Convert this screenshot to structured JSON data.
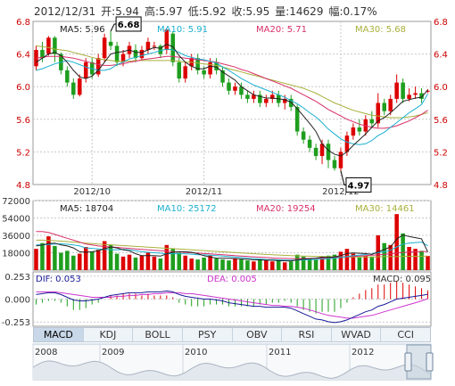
{
  "header": {
    "date": "2012/12/31",
    "open": "开:5.94",
    "high": "高:5.97",
    "low": "低:5.92",
    "close": "收:5.95",
    "volume": "量:14629",
    "change": "幅:0.17%"
  },
  "tabs": [
    {
      "label": "MACD",
      "active": true
    },
    {
      "label": "KDJ",
      "active": false
    },
    {
      "label": "BOLL",
      "active": false
    },
    {
      "label": "PSY",
      "active": false
    },
    {
      "label": "OBV",
      "active": false
    },
    {
      "label": "RSI",
      "active": false
    },
    {
      "label": "WVAD",
      "active": false
    },
    {
      "label": "CCI",
      "active": false
    }
  ],
  "colors": {
    "up": "#dd0000",
    "down": "#1e9e1e",
    "ma5": "#222222",
    "ma10": "#1ab0d0",
    "ma20": "#d8306a",
    "ma30": "#a8b03a",
    "dif": "#1a1a99",
    "dea": "#cc33cc",
    "grid": "#c8c8c8"
  },
  "chart_data": [
    {
      "type": "candlestick",
      "ylim": [
        4.8,
        6.8
      ],
      "y_ticks": [
        "6.8",
        "6.4",
        "6.0",
        "5.6",
        "5.2",
        "4.8"
      ],
      "x_ticks": [
        {
          "label": "2012/10",
          "index": 9
        },
        {
          "label": "2012/11",
          "index": 27
        },
        {
          "label": "2012/12",
          "index": 49
        }
      ],
      "legend": [
        {
          "label": "MA5: 5.96",
          "color": "#222222"
        },
        {
          "label": "MA10: 5.91",
          "color": "#1ab0d0"
        },
        {
          "label": "MA20: 5.71",
          "color": "#d8306a"
        },
        {
          "label": "MA30: 5.68",
          "color": "#a8b03a"
        }
      ],
      "annotations": [
        {
          "text": "6.68",
          "index": 12,
          "value": 6.68
        },
        {
          "text": "4.97",
          "index": 49,
          "value": 4.97
        }
      ],
      "candles": [
        [
          6.25,
          6.45,
          6.5,
          6.2
        ],
        [
          6.45,
          6.35,
          6.55,
          6.3
        ],
        [
          6.4,
          6.6,
          6.62,
          6.38
        ],
        [
          6.6,
          6.4,
          6.62,
          6.3
        ],
        [
          6.4,
          6.2,
          6.42,
          6.15
        ],
        [
          6.2,
          6.05,
          6.25,
          6.0
        ],
        [
          6.05,
          5.9,
          6.1,
          5.85
        ],
        [
          5.9,
          6.1,
          6.15,
          5.88
        ],
        [
          6.1,
          6.3,
          6.35,
          6.05
        ],
        [
          6.3,
          6.15,
          6.35,
          6.1
        ],
        [
          6.15,
          6.35,
          6.4,
          6.12
        ],
        [
          6.35,
          6.6,
          6.65,
          6.3
        ],
        [
          6.55,
          6.5,
          6.68,
          6.45
        ],
        [
          6.5,
          6.3,
          6.55,
          6.25
        ],
        [
          6.3,
          6.4,
          6.45,
          6.25
        ],
        [
          6.4,
          6.5,
          6.55,
          6.35
        ],
        [
          6.45,
          6.35,
          6.52,
          6.3
        ],
        [
          6.35,
          6.45,
          6.5,
          6.32
        ],
        [
          6.45,
          6.55,
          6.6,
          6.4
        ],
        [
          6.5,
          6.5,
          6.55,
          6.45
        ],
        [
          6.5,
          6.4,
          6.52,
          6.35
        ],
        [
          6.45,
          6.7,
          6.72,
          6.4
        ],
        [
          6.65,
          6.3,
          6.68,
          6.25
        ],
        [
          6.3,
          6.1,
          6.35,
          6.05
        ],
        [
          6.1,
          6.25,
          6.3,
          6.05
        ],
        [
          6.25,
          6.35,
          6.4,
          6.2
        ],
        [
          6.35,
          6.2,
          6.4,
          6.15
        ],
        [
          6.2,
          6.15,
          6.25,
          6.1
        ],
        [
          6.15,
          6.3,
          6.35,
          6.1
        ],
        [
          6.3,
          6.2,
          6.35,
          6.15
        ],
        [
          6.2,
          6.05,
          6.25,
          6.0
        ],
        [
          6.05,
          5.95,
          6.1,
          5.9
        ],
        [
          5.95,
          6.0,
          6.05,
          5.9
        ],
        [
          6.0,
          5.9,
          6.05,
          5.85
        ],
        [
          5.9,
          5.85,
          5.95,
          5.8
        ],
        [
          5.85,
          5.9,
          5.95,
          5.8
        ],
        [
          5.9,
          5.8,
          5.95,
          5.75
        ],
        [
          5.8,
          5.85,
          5.9,
          5.75
        ],
        [
          5.85,
          5.9,
          5.95,
          5.8
        ],
        [
          5.9,
          5.8,
          5.95,
          5.75
        ],
        [
          5.8,
          5.85,
          5.9,
          5.72
        ],
        [
          5.85,
          5.75,
          5.9,
          5.7
        ],
        [
          5.75,
          5.45,
          5.78,
          5.4
        ],
        [
          5.45,
          5.35,
          5.5,
          5.3
        ],
        [
          5.35,
          5.25,
          5.4,
          5.2
        ],
        [
          5.25,
          5.15,
          5.3,
          5.1
        ],
        [
          5.15,
          5.3,
          5.35,
          5.05
        ],
        [
          5.3,
          5.1,
          5.35,
          5.0
        ],
        [
          5.1,
          5.0,
          5.15,
          4.97
        ],
        [
          5.0,
          5.2,
          5.25,
          4.97
        ],
        [
          5.2,
          5.4,
          5.45,
          5.15
        ],
        [
          5.4,
          5.5,
          5.55,
          5.35
        ],
        [
          5.5,
          5.45,
          5.6,
          5.4
        ],
        [
          5.45,
          5.6,
          5.65,
          5.4
        ],
        [
          5.6,
          5.55,
          5.7,
          5.5
        ],
        [
          5.55,
          5.8,
          5.92,
          5.5
        ],
        [
          5.8,
          5.7,
          5.85,
          5.65
        ],
        [
          5.7,
          5.85,
          5.9,
          5.65
        ],
        [
          5.85,
          6.05,
          6.15,
          5.8
        ],
        [
          6.05,
          5.85,
          6.1,
          5.8
        ],
        [
          5.85,
          5.9,
          5.98,
          5.82
        ],
        [
          5.9,
          5.92,
          6.0,
          5.85
        ],
        [
          5.92,
          5.85,
          5.98,
          5.8
        ],
        [
          5.94,
          5.95,
          5.97,
          5.92
        ]
      ],
      "ma5": [
        6.3,
        6.35,
        6.4,
        6.42,
        6.38,
        6.3,
        6.2,
        6.12,
        6.1,
        6.13,
        6.2,
        6.3,
        6.4,
        6.42,
        6.43,
        6.45,
        6.42,
        6.42,
        6.45,
        6.48,
        6.47,
        6.52,
        6.49,
        6.38,
        6.3,
        6.25,
        6.22,
        6.22,
        6.25,
        6.24,
        6.18,
        6.13,
        6.08,
        6.0,
        5.95,
        5.9,
        5.88,
        5.86,
        5.86,
        5.85,
        5.84,
        5.81,
        5.73,
        5.64,
        5.55,
        5.45,
        5.3,
        5.22,
        5.17,
        5.15,
        5.2,
        5.28,
        5.35,
        5.42,
        5.5,
        5.58,
        5.62,
        5.68,
        5.75,
        5.82,
        5.84,
        5.86,
        5.87,
        5.96
      ],
      "ma10": [
        6.2,
        6.22,
        6.25,
        6.28,
        6.3,
        6.32,
        6.3,
        6.27,
        6.24,
        6.22,
        6.2,
        6.2,
        6.22,
        6.27,
        6.3,
        6.34,
        6.36,
        6.38,
        6.4,
        6.42,
        6.44,
        6.46,
        6.45,
        6.42,
        6.38,
        6.36,
        6.34,
        6.33,
        6.31,
        6.29,
        6.24,
        6.2,
        6.15,
        6.1,
        6.06,
        6.02,
        5.99,
        5.96,
        5.93,
        5.9,
        5.87,
        5.83,
        5.79,
        5.74,
        5.68,
        5.63,
        5.56,
        5.48,
        5.42,
        5.36,
        5.32,
        5.3,
        5.29,
        5.3,
        5.34,
        5.4,
        5.44,
        5.5,
        5.56,
        5.62,
        5.68,
        5.73,
        5.78,
        5.91
      ],
      "ma20": [
        6.35,
        6.36,
        6.37,
        6.37,
        6.37,
        6.36,
        6.35,
        6.33,
        6.31,
        6.29,
        6.27,
        6.26,
        6.26,
        6.27,
        6.28,
        6.3,
        6.31,
        6.33,
        6.34,
        6.35,
        6.36,
        6.37,
        6.37,
        6.36,
        6.35,
        6.34,
        6.33,
        6.32,
        6.31,
        6.3,
        6.28,
        6.26,
        6.24,
        6.21,
        6.19,
        6.16,
        6.13,
        6.1,
        6.07,
        6.04,
        6.01,
        5.98,
        5.94,
        5.9,
        5.86,
        5.82,
        5.77,
        5.72,
        5.68,
        5.64,
        5.6,
        5.57,
        5.54,
        5.52,
        5.5,
        5.49,
        5.49,
        5.5,
        5.52,
        5.55,
        5.58,
        5.62,
        5.66,
        5.71
      ],
      "ma30": [
        6.5,
        6.49,
        6.48,
        6.46,
        6.45,
        6.44,
        6.42,
        6.4,
        6.38,
        6.36,
        6.34,
        6.33,
        6.32,
        6.31,
        6.31,
        6.31,
        6.32,
        6.32,
        6.32,
        6.32,
        6.32,
        6.32,
        6.32,
        6.31,
        6.3,
        6.3,
        6.29,
        6.28,
        6.27,
        6.26,
        6.24,
        6.22,
        6.2,
        6.18,
        6.16,
        6.14,
        6.12,
        6.1,
        6.08,
        6.06,
        6.04,
        6.02,
        6.0,
        5.98,
        5.95,
        5.92,
        5.88,
        5.84,
        5.8,
        5.77,
        5.74,
        5.71,
        5.69,
        5.67,
        5.65,
        5.64,
        5.63,
        5.62,
        5.62,
        5.62,
        5.63,
        5.64,
        5.66,
        5.68
      ]
    },
    {
      "type": "bar",
      "ylim": [
        0,
        72000
      ],
      "y_ticks": [
        "72000",
        "54000",
        "36000",
        "18000"
      ],
      "legend": [
        {
          "label": "MA5: 18704",
          "color": "#222222"
        },
        {
          "label": "MA10: 25172",
          "color": "#1ab0d0"
        },
        {
          "label": "MA20: 19254",
          "color": "#d8306a"
        },
        {
          "label": "MA30: 14461",
          "color": "#a8b03a"
        }
      ],
      "values": [
        22000,
        28000,
        35000,
        25000,
        18000,
        20000,
        15000,
        17000,
        24000,
        19000,
        21000,
        30000,
        26000,
        17000,
        14000,
        16000,
        13000,
        15000,
        18000,
        14000,
        12000,
        26000,
        22000,
        18000,
        15000,
        12000,
        11000,
        13000,
        15000,
        12000,
        11000,
        10000,
        12000,
        11000,
        10000,
        9000,
        11000,
        10000,
        9000,
        10000,
        8000,
        9000,
        16000,
        14000,
        12000,
        11000,
        14000,
        15000,
        16000,
        19000,
        22000,
        17000,
        13000,
        15000,
        14000,
        36000,
        28000,
        26000,
        58000,
        38000,
        24000,
        22000,
        20000,
        14629
      ],
      "ma5": [
        25000,
        26000,
        27500,
        28000,
        26000,
        25000,
        23000,
        19000,
        18500,
        19000,
        20000,
        22000,
        24000,
        23000,
        21000,
        20000,
        17000,
        15000,
        15000,
        15000,
        14500,
        17000,
        18500,
        19000,
        19000,
        18500,
        17000,
        15000,
        13500,
        12500,
        12400,
        12200,
        12000,
        11500,
        11200,
        10600,
        10600,
        10200,
        10200,
        9800,
        9600,
        9400,
        10600,
        11400,
        11800,
        12400,
        13400,
        13200,
        13600,
        15000,
        17200,
        17800,
        17400,
        17200,
        16200,
        19000,
        21200,
        24000,
        32200,
        36400,
        34800,
        33600,
        32400,
        18704
      ],
      "ma10": [
        26000,
        26200,
        26500,
        27000,
        27200,
        26800,
        26000,
        25000,
        23000,
        22500,
        22000,
        21500,
        21000,
        21000,
        21500,
        21000,
        20000,
        19000,
        18500,
        18000,
        17500,
        17000,
        17000,
        17000,
        17000,
        16500,
        16000,
        15800,
        15500,
        15000,
        14500,
        14000,
        13500,
        13000,
        12500,
        12000,
        11500,
        11000,
        10800,
        10600,
        10400,
        10200,
        10300,
        10500,
        10700,
        11000,
        11500,
        11800,
        12400,
        13000,
        14000,
        15000,
        15500,
        16200,
        16800,
        18000,
        19000,
        20500,
        24000,
        27000,
        28000,
        28500,
        29000,
        25172
      ],
      "ma20": [
        40000,
        40000,
        39000,
        37000,
        35000,
        33000,
        31000,
        29000,
        27000,
        26000,
        25000,
        24500,
        24000,
        23500,
        23000,
        22500,
        22000,
        21500,
        21000,
        20500,
        20000,
        19600,
        19200,
        18800,
        18400,
        18000,
        17600,
        17200,
        16800,
        16400,
        16000,
        15500,
        15000,
        14600,
        14200,
        13800,
        13400,
        13000,
        12600,
        12300,
        12100,
        11900,
        11900,
        12000,
        12100,
        12300,
        12500,
        12800,
        13100,
        13400,
        13800,
        14200,
        14600,
        15000,
        15400,
        15800,
        16300,
        16800,
        17600,
        18300,
        18700,
        19000,
        19200,
        19254
      ],
      "ma30": [
        31000,
        31000,
        30800,
        30500,
        30000,
        29500,
        29000,
        28500,
        28000,
        27500,
        27000,
        26600,
        26200,
        25800,
        25400,
        25000,
        24600,
        24200,
        23800,
        23400,
        23000,
        22600,
        22200,
        21800,
        21400,
        21000,
        20600,
        20200,
        19800,
        19400,
        19000,
        18600,
        18200,
        17800,
        17400,
        17000,
        16600,
        16200,
        15900,
        15600,
        15300,
        15000,
        14800,
        14600,
        14400,
        14200,
        14000,
        13900,
        13800,
        13700,
        13650,
        13600,
        13600,
        13650,
        13700,
        13800,
        13900,
        14000,
        14100,
        14200,
        14300,
        14350,
        14400,
        14461
      ]
    },
    {
      "type": "line",
      "ylim": [
        -0.3,
        0.3
      ],
      "y_ticks": [
        "0.253",
        "0.000",
        "-0.253"
      ],
      "legend": [
        {
          "label": "DIF: 0.053",
          "color": "#1a1a99"
        },
        {
          "label": "DEA: 0.005",
          "color": "#cc33cc"
        },
        {
          "label": "MACD: 0.095",
          "color": "#333333"
        }
      ],
      "dif": [
        0.05,
        0.06,
        0.07,
        0.07,
        0.05,
        0.02,
        -0.01,
        -0.02,
        -0.02,
        -0.01,
        0.0,
        0.02,
        0.04,
        0.05,
        0.06,
        0.07,
        0.07,
        0.07,
        0.08,
        0.08,
        0.08,
        0.09,
        0.08,
        0.05,
        0.03,
        0.02,
        0.01,
        0.0,
        0.0,
        -0.01,
        -0.02,
        -0.04,
        -0.05,
        -0.06,
        -0.07,
        -0.08,
        -0.08,
        -0.09,
        -0.09,
        -0.09,
        -0.09,
        -0.1,
        -0.13,
        -0.16,
        -0.19,
        -0.22,
        -0.23,
        -0.25,
        -0.26,
        -0.25,
        -0.23,
        -0.2,
        -0.17,
        -0.14,
        -0.12,
        -0.08,
        -0.06,
        -0.03,
        0.0,
        0.01,
        0.02,
        0.03,
        0.04,
        0.053
      ],
      "dea": [
        0.08,
        0.08,
        0.08,
        0.08,
        0.07,
        0.06,
        0.05,
        0.04,
        0.03,
        0.02,
        0.02,
        0.02,
        0.02,
        0.03,
        0.03,
        0.04,
        0.04,
        0.05,
        0.05,
        0.06,
        0.06,
        0.07,
        0.07,
        0.07,
        0.06,
        0.06,
        0.05,
        0.04,
        0.03,
        0.02,
        0.01,
        0.0,
        -0.01,
        -0.02,
        -0.03,
        -0.04,
        -0.05,
        -0.06,
        -0.07,
        -0.07,
        -0.08,
        -0.08,
        -0.09,
        -0.1,
        -0.12,
        -0.14,
        -0.16,
        -0.18,
        -0.19,
        -0.2,
        -0.21,
        -0.21,
        -0.2,
        -0.19,
        -0.18,
        -0.16,
        -0.14,
        -0.12,
        -0.1,
        -0.08,
        -0.06,
        -0.04,
        -0.02,
        0.005
      ]
    }
  ]
}
